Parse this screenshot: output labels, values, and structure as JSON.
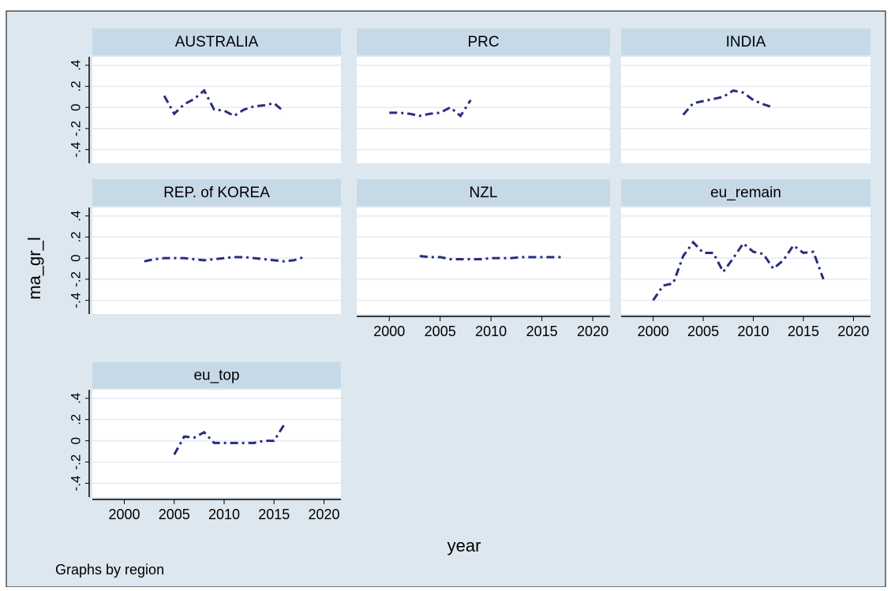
{
  "chart_data": [
    {
      "type": "line",
      "title": "AUSTRALIA",
      "x": [
        2004,
        2005,
        2006,
        2007,
        2008,
        2009,
        2010,
        2011,
        2012,
        2013,
        2014,
        2015,
        2016
      ],
      "values": [
        0.11,
        -0.06,
        0.03,
        0.08,
        0.16,
        -0.02,
        -0.03,
        -0.08,
        -0.02,
        0.01,
        0.02,
        0.04,
        -0.04
      ]
    },
    {
      "type": "line",
      "title": "PRC",
      "x": [
        2000,
        2001,
        2002,
        2003,
        2004,
        2005,
        2006,
        2007,
        2008
      ],
      "values": [
        -0.05,
        -0.05,
        -0.06,
        -0.08,
        -0.06,
        -0.05,
        0.0,
        -0.08,
        0.07
      ]
    },
    {
      "type": "line",
      "title": "INDIA",
      "x": [
        2003,
        2004,
        2005,
        2006,
        2007,
        2008,
        2009,
        2010,
        2011,
        2012
      ],
      "values": [
        -0.07,
        0.04,
        0.06,
        0.08,
        0.1,
        0.16,
        0.14,
        0.07,
        0.03,
        0.0
      ]
    },
    {
      "type": "line",
      "title": "REP. of KOREA",
      "x": [
        2002,
        2003,
        2004,
        2005,
        2006,
        2007,
        2008,
        2009,
        2010,
        2011,
        2012,
        2013,
        2014,
        2015,
        2016,
        2017,
        2018
      ],
      "values": [
        -0.03,
        -0.01,
        0.0,
        0.0,
        0.0,
        -0.01,
        -0.02,
        -0.01,
        0.0,
        0.01,
        0.01,
        0.0,
        -0.01,
        -0.02,
        -0.03,
        -0.02,
        0.01
      ]
    },
    {
      "type": "line",
      "title": "NZL",
      "x": [
        2003,
        2004,
        2005,
        2006,
        2007,
        2008,
        2009,
        2010,
        2011,
        2012,
        2013,
        2014,
        2015,
        2016,
        2017
      ],
      "values": [
        0.02,
        0.01,
        0.01,
        -0.01,
        -0.01,
        -0.01,
        -0.01,
        0.0,
        0.0,
        0.0,
        0.01,
        0.01,
        0.01,
        0.01,
        0.01
      ]
    },
    {
      "type": "line",
      "title": "eu_remain",
      "x": [
        2000,
        2001,
        2002,
        2003,
        2004,
        2005,
        2006,
        2007,
        2008,
        2009,
        2010,
        2011,
        2012,
        2013,
        2014,
        2015,
        2016,
        2017
      ],
      "values": [
        -0.4,
        -0.26,
        -0.24,
        0.02,
        0.15,
        0.05,
        0.05,
        -0.13,
        0.0,
        0.14,
        0.06,
        0.04,
        -0.1,
        -0.02,
        0.12,
        0.05,
        0.06,
        -0.2
      ]
    },
    {
      "type": "line",
      "title": "eu_top",
      "x": [
        2005,
        2006,
        2007,
        2008,
        2009,
        2010,
        2011,
        2012,
        2013,
        2014,
        2015,
        2016
      ],
      "values": [
        -0.13,
        0.04,
        0.03,
        0.08,
        -0.02,
        -0.02,
        -0.02,
        -0.02,
        -0.02,
        0.0,
        0.0,
        0.15
      ]
    }
  ],
  "ylabel": "ma_gr_l",
  "xlabel": "year",
  "note": "Graphs by region",
  "ylim": [
    -0.53,
    0.48
  ],
  "yticks": [
    {
      "value": -0.4,
      "label": "-.4"
    },
    {
      "value": -0.2,
      "label": "-.2"
    },
    0,
    {
      "value": 0.2,
      "label": ".2"
    },
    {
      "value": 0.4,
      "label": ".4"
    }
  ],
  "xlim": [
    1996.8,
    2021.7
  ],
  "xticks": [
    2000,
    2005,
    2010,
    2015,
    2020
  ],
  "grid": true,
  "line_color": "#2a2c7e"
}
